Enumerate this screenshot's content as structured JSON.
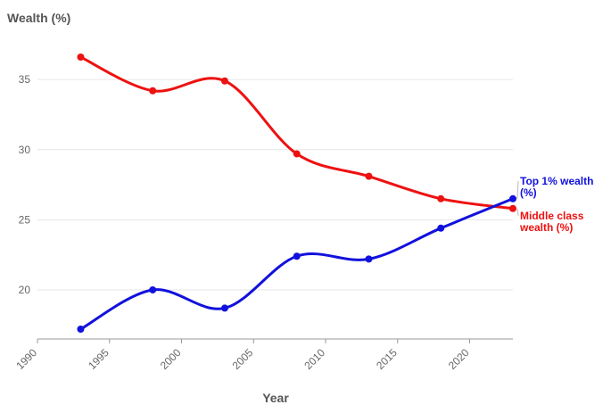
{
  "chart_data": {
    "type": "line",
    "ylabel": "Wealth (%)",
    "xlabel": "Year",
    "xlim": [
      1990,
      2023
    ],
    "ylim": [
      16.5,
      38
    ],
    "x_ticks": [
      1990,
      1995,
      2000,
      2005,
      2010,
      2015,
      2020
    ],
    "y_ticks": [
      20,
      25,
      30,
      35
    ],
    "x": [
      1993,
      1998,
      2003,
      2008,
      2013,
      2018,
      2023
    ],
    "grid": true,
    "series": [
      {
        "name": "Middle class wealth (%)",
        "label_lines": [
          "Middle class",
          "wealth (%)"
        ],
        "color": "#ee1111",
        "values": [
          36.6,
          34.2,
          34.9,
          29.7,
          28.1,
          26.5,
          25.8
        ]
      },
      {
        "name": "Top 1% wealth (%)",
        "label_lines": [
          "Top 1% wealth",
          "(%)"
        ],
        "color": "#1111dd",
        "values": [
          17.2,
          20.0,
          18.7,
          22.4,
          22.2,
          24.4,
          26.5
        ]
      }
    ]
  }
}
